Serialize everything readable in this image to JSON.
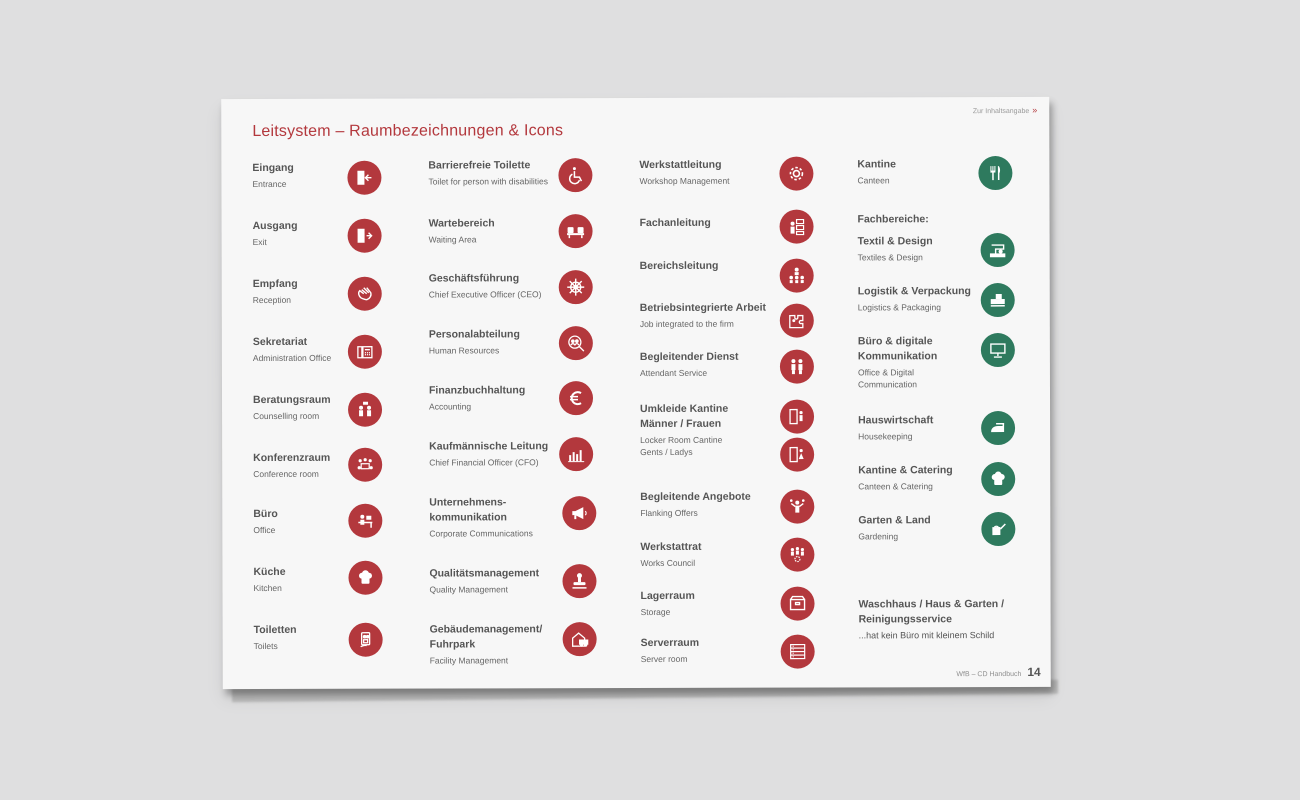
{
  "page": {
    "toc_link": "Zur Inhaltsangabe",
    "toc_link_chevron": "»",
    "title": "Leitsystem – Raumbezeichnungen & Icons",
    "footer_text": "WfB – CD Handbuch",
    "page_number": "14"
  },
  "columns": [
    {
      "entries": [
        {
          "name": "Eingang",
          "sub": "Entrance",
          "icon": "entrance-icon",
          "color": "#b3383d"
        },
        {
          "name": "Ausgang",
          "sub": "Exit",
          "icon": "exit-icon",
          "color": "#b3383d"
        },
        {
          "name": "Empfang",
          "sub": "Reception",
          "icon": "waving-hand-icon",
          "color": "#b3383d"
        },
        {
          "name": "Sekretariat",
          "sub": "Administration Office",
          "icon": "telephone-icon",
          "color": "#b3383d"
        },
        {
          "name": "Beratungsraum",
          "sub": "Counselling room",
          "icon": "consultation-icon",
          "color": "#b3383d"
        },
        {
          "name": "Konferenzraum",
          "sub": "Conference room",
          "icon": "conference-icon",
          "color": "#b3383d"
        },
        {
          "name": "Büro",
          "sub": "Office",
          "icon": "desk-icon",
          "color": "#b3383d"
        },
        {
          "name": "Küche",
          "sub": "Kitchen",
          "icon": "chef-hat-icon",
          "color": "#b3383d"
        },
        {
          "name": "Toiletten",
          "sub": "Toilets",
          "icon": "toilet-icon",
          "color": "#b3383d"
        }
      ]
    },
    {
      "entries": [
        {
          "name": "Barrierefreie Toilette",
          "sub": "Toilet for person with disabilities",
          "icon": "wheelchair-icon",
          "color": "#b3383d"
        },
        {
          "name": "Wartebereich",
          "sub": "Waiting Area",
          "icon": "seats-icon",
          "color": "#b3383d"
        },
        {
          "name": "Geschäftsführung",
          "sub": "Chief Executive Officer (CEO)",
          "icon": "helm-icon",
          "color": "#b3383d"
        },
        {
          "name": "Personalabteilung",
          "sub": "Human Resources",
          "icon": "people-search-icon",
          "color": "#b3383d"
        },
        {
          "name": "Finanzbuchhaltung",
          "sub": "Accounting",
          "icon": "euro-icon",
          "color": "#b3383d"
        },
        {
          "name": "Kaufmännische Leitung",
          "sub": "Chief Financial Officer (CFO)",
          "icon": "bar-chart-icon",
          "color": "#b3383d"
        },
        {
          "name": "Unternehmens-",
          "name2": "kommunikation",
          "sub": "Corporate Communications",
          "icon": "megaphone-icon",
          "color": "#b3383d"
        },
        {
          "name": "Qualitätsmanagement",
          "sub": "Quality Management",
          "icon": "stamp-icon",
          "color": "#b3383d"
        },
        {
          "name": "Gebäudemanagement/",
          "name2": "Fuhrpark",
          "sub": "Facility Management",
          "icon": "building-car-icon",
          "color": "#b3383d"
        }
      ]
    },
    {
      "entries": [
        {
          "name": "Werkstattleitung",
          "sub": "Workshop Management",
          "icon": "gear-icon",
          "color": "#b3383d"
        },
        {
          "name": "Fachanleitung",
          "sub": "",
          "icon": "instructor-icon",
          "color": "#b3383d"
        },
        {
          "name": "Bereichsleitung",
          "sub": "",
          "icon": "hierarchy-icon",
          "color": "#b3383d"
        },
        {
          "name": "Betriebsintegrierte Arbeit",
          "sub": "Job integrated to the firm",
          "icon": "puzzle-person-icon",
          "color": "#b3383d"
        },
        {
          "name": "Begleitender Dienst",
          "sub": "Attendant Service",
          "icon": "two-people-icon",
          "color": "#b3383d"
        },
        {
          "name": "Umkleide Kantine",
          "name2": "Männer / Frauen",
          "sub": "Locker Room Cantine",
          "sub2": "Gents / Ladys",
          "icon": "locker-man-icon",
          "icon2": "locker-woman-icon",
          "color": "#b3383d"
        },
        {
          "name": "Begleitende Angebote",
          "sub": "Flanking Offers",
          "icon": "juggler-icon",
          "color": "#b3383d"
        },
        {
          "name": "Werkstattrat",
          "sub": "Works Council",
          "icon": "council-icon",
          "color": "#b3383d"
        },
        {
          "name": "Lagerraum",
          "sub": "Storage",
          "icon": "storage-box-icon",
          "color": "#b3383d"
        },
        {
          "name": "Serverraum",
          "sub": "Server room",
          "icon": "server-icon",
          "color": "#b3383d"
        }
      ]
    },
    {
      "kantine": {
        "name": "Kantine",
        "sub": "Canteen",
        "icon": "cutlery-icon",
        "color": "#2e7a5e"
      },
      "section_heading": "Fachbereiche:",
      "entries": [
        {
          "name": "Textil & Design",
          "sub": "Textiles & Design",
          "icon": "sewing-machine-icon",
          "color": "#2e7a5e"
        },
        {
          "name": "Logistik & Verpackung",
          "sub": "Logistics & Packaging",
          "icon": "package-icon",
          "color": "#2e7a5e"
        },
        {
          "name": "Büro & digitale",
          "name2": "Kommunikation",
          "sub": "Office & Digital",
          "sub2": "Communication",
          "icon": "monitor-icon",
          "color": "#2e7a5e"
        },
        {
          "name": "Hauswirtschaft",
          "sub": "Housekeeping",
          "icon": "iron-icon",
          "color": "#2e7a5e"
        },
        {
          "name": "Kantine & Catering",
          "sub": "Canteen & Catering",
          "icon": "chef-hat-icon",
          "color": "#2e7a5e"
        },
        {
          "name": "Garten & Land",
          "sub": "Gardening",
          "icon": "watering-can-icon",
          "color": "#2e7a5e"
        }
      ],
      "waschhaus": {
        "name": "Waschhaus / Haus & Garten /",
        "name2": "Reinigungsservice",
        "note": "...hat kein Büro mit kleinem Schild"
      }
    }
  ]
}
